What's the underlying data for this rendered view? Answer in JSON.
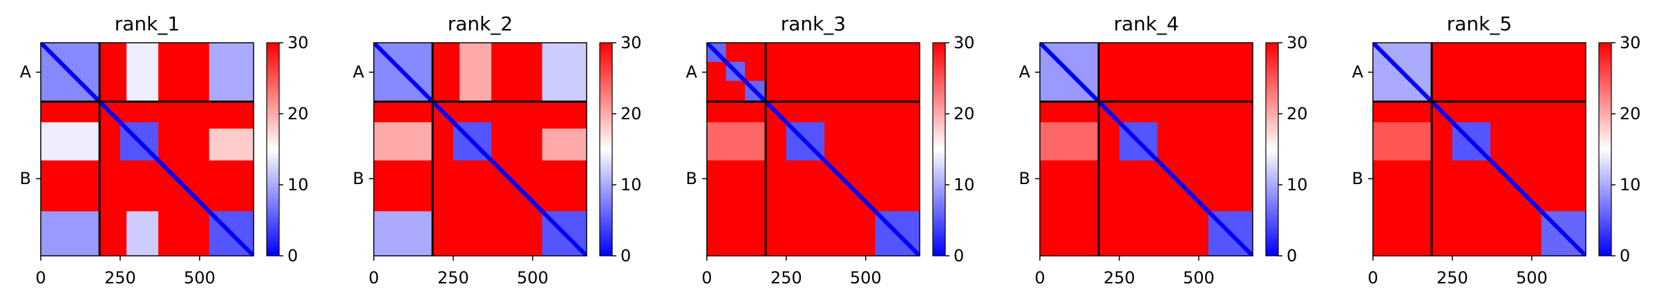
{
  "chart_data": [
    {
      "type": "heatmap",
      "title": "rank_1",
      "xlabel": "",
      "ylabel": "",
      "x_ticks": [
        0,
        250,
        500
      ],
      "y_tick_labels": [
        "A",
        "B"
      ],
      "chain_boundary": 185,
      "total_residues": 670,
      "colorbar": {
        "min": 0,
        "max": 30,
        "ticks": [
          0,
          10,
          20,
          30
        ],
        "colors": [
          "#0000ff",
          "#ffffff",
          "#ff0000"
        ]
      },
      "blue_blocks": [
        {
          "x": [
            0,
            185
          ],
          "y": [
            0,
            185
          ],
          "value": 8
        },
        {
          "x": [
            270,
            370
          ],
          "y": [
            0,
            185
          ],
          "value": 14
        },
        {
          "x": [
            530,
            670
          ],
          "y": [
            0,
            185
          ],
          "value": 10
        },
        {
          "x": [
            0,
            185
          ],
          "y": [
            250,
            370
          ],
          "value": 14
        },
        {
          "x": [
            0,
            185
          ],
          "y": [
            530,
            670
          ],
          "value": 9
        },
        {
          "x": [
            250,
            370
          ],
          "y": [
            250,
            370
          ],
          "value": 5
        },
        {
          "x": [
            530,
            670
          ],
          "y": [
            530,
            670
          ],
          "value": 5
        },
        {
          "x": [
            270,
            370
          ],
          "y": [
            530,
            670
          ],
          "value": 12
        },
        {
          "x": [
            530,
            670
          ],
          "y": [
            270,
            370
          ],
          "value": 18
        }
      ]
    },
    {
      "type": "heatmap",
      "title": "rank_2",
      "xlabel": "",
      "ylabel": "",
      "x_ticks": [
        0,
        250,
        500
      ],
      "y_tick_labels": [
        "A",
        "B"
      ],
      "chain_boundary": 185,
      "total_residues": 670,
      "colorbar": {
        "min": 0,
        "max": 30,
        "ticks": [
          0,
          10,
          20,
          30
        ],
        "colors": [
          "#0000ff",
          "#ffffff",
          "#ff0000"
        ]
      },
      "blue_blocks": [
        {
          "x": [
            0,
            185
          ],
          "y": [
            0,
            185
          ],
          "value": 8
        },
        {
          "x": [
            270,
            370
          ],
          "y": [
            0,
            185
          ],
          "value": 20
        },
        {
          "x": [
            530,
            670
          ],
          "y": [
            0,
            185
          ],
          "value": 12
        },
        {
          "x": [
            0,
            185
          ],
          "y": [
            250,
            370
          ],
          "value": 20
        },
        {
          "x": [
            0,
            185
          ],
          "y": [
            530,
            670
          ],
          "value": 10
        },
        {
          "x": [
            250,
            370
          ],
          "y": [
            250,
            370
          ],
          "value": 5
        },
        {
          "x": [
            530,
            670
          ],
          "y": [
            530,
            670
          ],
          "value": 5
        },
        {
          "x": [
            530,
            670
          ],
          "y": [
            270,
            370
          ],
          "value": 20
        }
      ]
    },
    {
      "type": "heatmap",
      "title": "rank_3",
      "xlabel": "",
      "ylabel": "",
      "x_ticks": [
        0,
        250,
        500
      ],
      "y_tick_labels": [
        "A",
        "B"
      ],
      "chain_boundary": 185,
      "total_residues": 670,
      "colorbar": {
        "min": 0,
        "max": 30,
        "ticks": [
          0,
          10,
          20,
          30
        ],
        "colors": [
          "#0000ff",
          "#ffffff",
          "#ff0000"
        ]
      },
      "blue_blocks": [
        {
          "x": [
            0,
            60
          ],
          "y": [
            0,
            60
          ],
          "value": 6
        },
        {
          "x": [
            60,
            120
          ],
          "y": [
            60,
            120
          ],
          "value": 6
        },
        {
          "x": [
            120,
            185
          ],
          "y": [
            120,
            185
          ],
          "value": 6
        },
        {
          "x": [
            250,
            370
          ],
          "y": [
            250,
            370
          ],
          "value": 5
        },
        {
          "x": [
            530,
            670
          ],
          "y": [
            530,
            670
          ],
          "value": 5
        },
        {
          "x": [
            0,
            185
          ],
          "y": [
            250,
            370
          ],
          "value": 24
        }
      ]
    },
    {
      "type": "heatmap",
      "title": "rank_4",
      "xlabel": "",
      "ylabel": "",
      "x_ticks": [
        0,
        250,
        500
      ],
      "y_tick_labels": [
        "A",
        "B"
      ],
      "chain_boundary": 185,
      "total_residues": 670,
      "colorbar": {
        "min": 0,
        "max": 30,
        "ticks": [
          0,
          10,
          20,
          30
        ],
        "colors": [
          "#0000ff",
          "#ffffff",
          "#ff0000"
        ]
      },
      "blue_blocks": [
        {
          "x": [
            0,
            185
          ],
          "y": [
            0,
            185
          ],
          "value": 9
        },
        {
          "x": [
            250,
            370
          ],
          "y": [
            250,
            370
          ],
          "value": 5
        },
        {
          "x": [
            530,
            670
          ],
          "y": [
            530,
            670
          ],
          "value": 5
        },
        {
          "x": [
            0,
            185
          ],
          "y": [
            250,
            370
          ],
          "value": 24
        }
      ]
    },
    {
      "type": "heatmap",
      "title": "rank_5",
      "xlabel": "",
      "ylabel": "",
      "x_ticks": [
        0,
        250,
        500
      ],
      "y_tick_labels": [
        "A",
        "B"
      ],
      "chain_boundary": 185,
      "total_residues": 670,
      "colorbar": {
        "min": 0,
        "max": 30,
        "ticks": [
          0,
          10,
          20,
          30
        ],
        "colors": [
          "#0000ff",
          "#ffffff",
          "#ff0000"
        ]
      },
      "blue_blocks": [
        {
          "x": [
            0,
            185
          ],
          "y": [
            0,
            185
          ],
          "value": 10
        },
        {
          "x": [
            250,
            370
          ],
          "y": [
            250,
            370
          ],
          "value": 5
        },
        {
          "x": [
            530,
            670
          ],
          "y": [
            530,
            670
          ],
          "value": 6
        },
        {
          "x": [
            0,
            185
          ],
          "y": [
            250,
            370
          ],
          "value": 25
        }
      ]
    }
  ]
}
